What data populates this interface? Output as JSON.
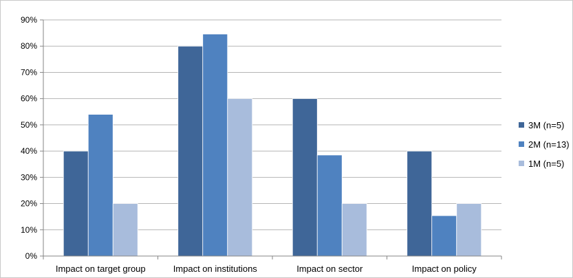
{
  "chart_data": {
    "type": "bar",
    "categories": [
      "Impact on target group",
      "Impact on institutions",
      "Impact on sector",
      "Impact on policy"
    ],
    "series": [
      {
        "name": "3M (n=5)",
        "color": "#3f6698",
        "values": [
          40,
          80,
          60,
          40
        ]
      },
      {
        "name": "2M (n=13)",
        "color": "#4f82c0",
        "values": [
          54,
          84.6,
          38.5,
          15.4
        ]
      },
      {
        "name": "1M (n=5)",
        "color": "#a8bcdc",
        "values": [
          20,
          60,
          20,
          20
        ]
      }
    ],
    "y_ticks": [
      "0%",
      "10%",
      "20%",
      "30%",
      "40%",
      "50%",
      "60%",
      "70%",
      "80%",
      "90%"
    ],
    "ylim": [
      0,
      90
    ],
    "grid": true,
    "legend_position": "right",
    "title": "",
    "xlabel": "",
    "ylabel": ""
  }
}
